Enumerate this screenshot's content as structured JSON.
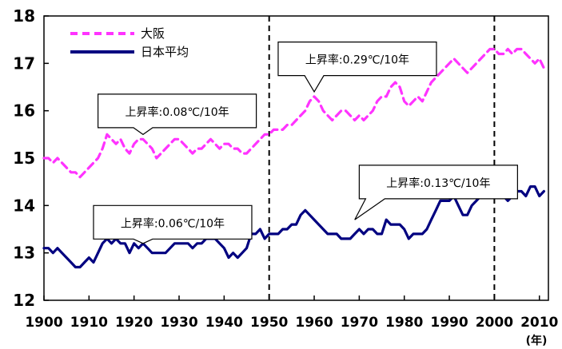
{
  "chart_data": {
    "type": "line",
    "unit_label": "(年)",
    "xlim": [
      1900,
      2012
    ],
    "ylim": [
      12,
      18
    ],
    "x_ticks": [
      1900,
      1910,
      1920,
      1930,
      1940,
      1950,
      1960,
      1970,
      1980,
      1990,
      2000,
      2010
    ],
    "y_ticks": [
      12,
      13,
      14,
      15,
      16,
      17,
      18
    ],
    "grid": false,
    "legend_position": "top-left",
    "vertical_dashed_lines": [
      1950,
      2000
    ],
    "series": [
      {
        "name": "大阪",
        "color": "#ff33ff",
        "style": "dashed",
        "x": [
          1900,
          1901,
          1902,
          1903,
          1904,
          1905,
          1906,
          1907,
          1908,
          1909,
          1910,
          1911,
          1912,
          1913,
          1914,
          1915,
          1916,
          1917,
          1918,
          1919,
          1920,
          1921,
          1922,
          1923,
          1924,
          1925,
          1926,
          1927,
          1928,
          1929,
          1930,
          1931,
          1932,
          1933,
          1934,
          1935,
          1936,
          1937,
          1938,
          1939,
          1940,
          1941,
          1942,
          1943,
          1944,
          1945,
          1946,
          1947,
          1948,
          1949,
          1950,
          1951,
          1952,
          1953,
          1954,
          1955,
          1956,
          1957,
          1958,
          1959,
          1960,
          1961,
          1962,
          1963,
          1964,
          1965,
          1966,
          1967,
          1968,
          1969,
          1970,
          1971,
          1972,
          1973,
          1974,
          1975,
          1976,
          1977,
          1978,
          1979,
          1980,
          1981,
          1982,
          1983,
          1984,
          1985,
          1986,
          1987,
          1988,
          1989,
          1990,
          1991,
          1992,
          1993,
          1994,
          1995,
          1996,
          1997,
          1998,
          1999,
          2000,
          2001,
          2002,
          2003,
          2004,
          2005,
          2006,
          2007,
          2008,
          2009,
          2010,
          2011
        ],
        "values": [
          15.0,
          15.0,
          14.9,
          15.0,
          14.9,
          14.8,
          14.7,
          14.7,
          14.6,
          14.7,
          14.8,
          14.9,
          15.0,
          15.2,
          15.5,
          15.4,
          15.3,
          15.4,
          15.2,
          15.1,
          15.3,
          15.4,
          15.4,
          15.3,
          15.2,
          15.0,
          15.1,
          15.2,
          15.3,
          15.4,
          15.4,
          15.3,
          15.2,
          15.1,
          15.2,
          15.2,
          15.3,
          15.4,
          15.3,
          15.2,
          15.3,
          15.3,
          15.2,
          15.2,
          15.1,
          15.1,
          15.2,
          15.3,
          15.4,
          15.5,
          15.5,
          15.6,
          15.6,
          15.6,
          15.7,
          15.7,
          15.8,
          15.9,
          16.0,
          16.2,
          16.3,
          16.2,
          16.0,
          15.9,
          15.8,
          15.9,
          16.0,
          16.0,
          15.9,
          15.8,
          15.9,
          15.8,
          15.9,
          16.0,
          16.2,
          16.3,
          16.3,
          16.5,
          16.6,
          16.5,
          16.2,
          16.1,
          16.2,
          16.3,
          16.2,
          16.4,
          16.6,
          16.7,
          16.8,
          16.9,
          17.0,
          17.1,
          17.0,
          16.9,
          16.8,
          16.9,
          17.0,
          17.1,
          17.2,
          17.3,
          17.3,
          17.2,
          17.2,
          17.3,
          17.2,
          17.3,
          17.3,
          17.2,
          17.1,
          17.0,
          17.1,
          16.9
        ]
      },
      {
        "name": "日本平均",
        "color": "#000080",
        "style": "solid",
        "x": [
          1900,
          1901,
          1902,
          1903,
          1904,
          1905,
          1906,
          1907,
          1908,
          1909,
          1910,
          1911,
          1912,
          1913,
          1914,
          1915,
          1916,
          1917,
          1918,
          1919,
          1920,
          1921,
          1922,
          1923,
          1924,
          1925,
          1926,
          1927,
          1928,
          1929,
          1930,
          1931,
          1932,
          1933,
          1934,
          1935,
          1936,
          1937,
          1938,
          1939,
          1940,
          1941,
          1942,
          1943,
          1944,
          1945,
          1946,
          1947,
          1948,
          1949,
          1950,
          1951,
          1952,
          1953,
          1954,
          1955,
          1956,
          1957,
          1958,
          1959,
          1960,
          1961,
          1962,
          1963,
          1964,
          1965,
          1966,
          1967,
          1968,
          1969,
          1970,
          1971,
          1972,
          1973,
          1974,
          1975,
          1976,
          1977,
          1978,
          1979,
          1980,
          1981,
          1982,
          1983,
          1984,
          1985,
          1986,
          1987,
          1988,
          1989,
          1990,
          1991,
          1992,
          1993,
          1994,
          1995,
          1996,
          1997,
          1998,
          1999,
          2000,
          2001,
          2002,
          2003,
          2004,
          2005,
          2006,
          2007,
          2008,
          2009,
          2010,
          2011
        ],
        "values": [
          13.1,
          13.1,
          13.0,
          13.1,
          13.0,
          12.9,
          12.8,
          12.7,
          12.7,
          12.8,
          12.9,
          12.8,
          13.0,
          13.2,
          13.3,
          13.2,
          13.3,
          13.2,
          13.2,
          13.0,
          13.2,
          13.1,
          13.2,
          13.1,
          13.0,
          13.0,
          13.0,
          13.0,
          13.1,
          13.2,
          13.2,
          13.2,
          13.2,
          13.1,
          13.2,
          13.2,
          13.3,
          13.3,
          13.3,
          13.2,
          13.1,
          12.9,
          13.0,
          12.9,
          13.0,
          13.1,
          13.4,
          13.4,
          13.5,
          13.3,
          13.4,
          13.4,
          13.4,
          13.5,
          13.5,
          13.6,
          13.6,
          13.8,
          13.9,
          13.8,
          13.7,
          13.6,
          13.5,
          13.4,
          13.4,
          13.4,
          13.3,
          13.3,
          13.3,
          13.4,
          13.5,
          13.4,
          13.5,
          13.5,
          13.4,
          13.4,
          13.7,
          13.6,
          13.6,
          13.6,
          13.5,
          13.3,
          13.4,
          13.4,
          13.4,
          13.5,
          13.7,
          13.9,
          14.1,
          14.1,
          14.1,
          14.2,
          14.0,
          13.8,
          13.8,
          14.0,
          14.1,
          14.2,
          14.2,
          14.3,
          14.3,
          14.2,
          14.2,
          14.1,
          14.2,
          14.3,
          14.3,
          14.2,
          14.4,
          14.4,
          14.2,
          14.3
        ]
      }
    ],
    "annotations": [
      {
        "text": "上昇率:0.08℃/10年",
        "box": [
          1912,
          16.35
        ],
        "pointer": [
          1922,
          15.5
        ]
      },
      {
        "text": "上昇率:0.29℃/10年",
        "box": [
          1952,
          17.45
        ],
        "pointer": [
          1960,
          16.4
        ]
      },
      {
        "text": "上昇率:0.06℃/10年",
        "box": [
          1911,
          14.0
        ],
        "pointer": [
          1922,
          13.2
        ]
      },
      {
        "text": "上昇率:0.13℃/10年",
        "box": [
          1970,
          14.85
        ],
        "pointer": [
          1969,
          13.7
        ]
      }
    ]
  }
}
